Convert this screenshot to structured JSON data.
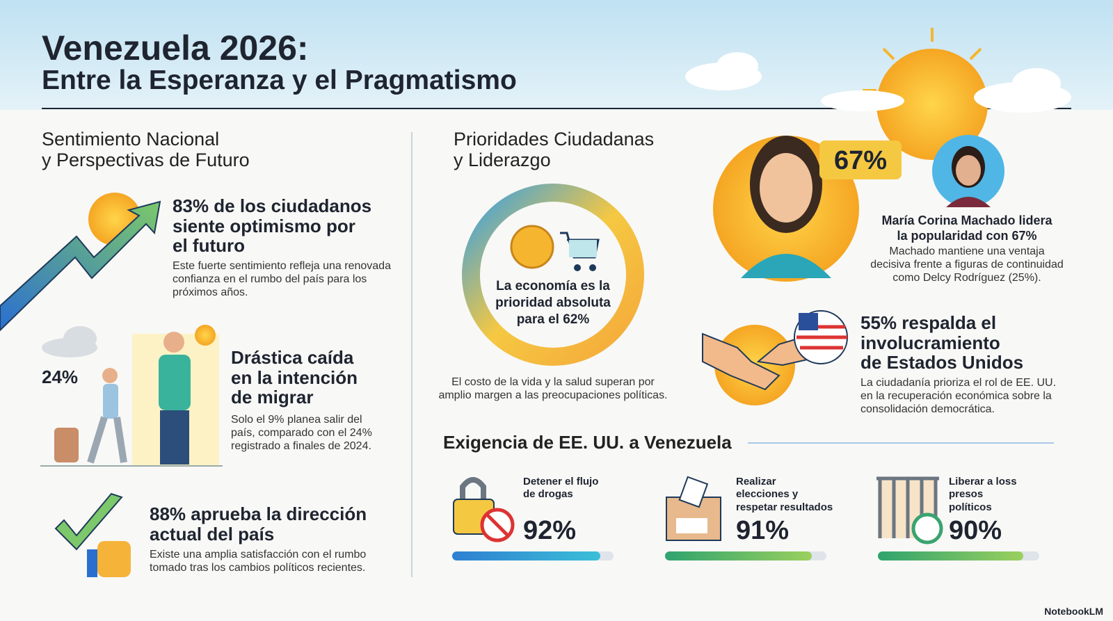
{
  "header": {
    "title": "Venezuela 2026:",
    "subtitle": "Entre la Esperanza y el Pragmatismo"
  },
  "left": {
    "title": "Sentimiento Nacional\ny Perspectivas de Futuro",
    "items": [
      {
        "heading": "83% de los ciudadanos\nsiente optimismo por\nel futuro",
        "body": "Este fuerte sentimiento refleja una renovada\nconfianza en el rumbo del país para los\npróximos años."
      },
      {
        "stat": "24%",
        "heading": "Drástica caída\nen la intención\nde migrar",
        "body": "Solo el 9% planea salir del\npaís, comparado con el 24%\nregistrado a finales de 2024."
      },
      {
        "heading": "88% aprueba la dirección\nactual del país",
        "body": "Existe una amplia satisfacción con el rumbo\ntomado tras los cambios políticos recientes."
      }
    ]
  },
  "middle": {
    "title": "Prioridades Ciudadanas\ny Liderazgo",
    "donut_text": "La economía es la\nprioridad absoluta\npara el 62%",
    "caption": "El costo de la vida y la salud superan por\namplio margen a las preocupaciones políticas."
  },
  "right": {
    "leader": {
      "badge": "67%",
      "heading": "María Corina Machado lidera\nla popularidad con 67%",
      "body": "Machado mantiene una ventaja\ndecisiva frente a figuras de continuidad\ncomo Delcy Rodríguez (25%)."
    },
    "us": {
      "heading": "55% respalda el\ninvolucramiento\nde Estados Unidos",
      "body": "La ciudadanía prioriza el rol de EE. UU.\nen la recuperación económica sobre la\nconsolidación democrática."
    }
  },
  "demands": {
    "title": "Exigencia de EE. UU. a Venezuela",
    "items": [
      {
        "label": "Detener el flujo\nde drogas",
        "value": 92,
        "value_label": "92%"
      },
      {
        "label": "Realizar\nelecciones y\nrespetar resultados",
        "value": 91,
        "value_label": "91%"
      },
      {
        "label": "Liberar a loss\npresos\npolíticos",
        "value": 90,
        "value_label": "90%"
      }
    ]
  },
  "footer": "NotebookLM"
}
